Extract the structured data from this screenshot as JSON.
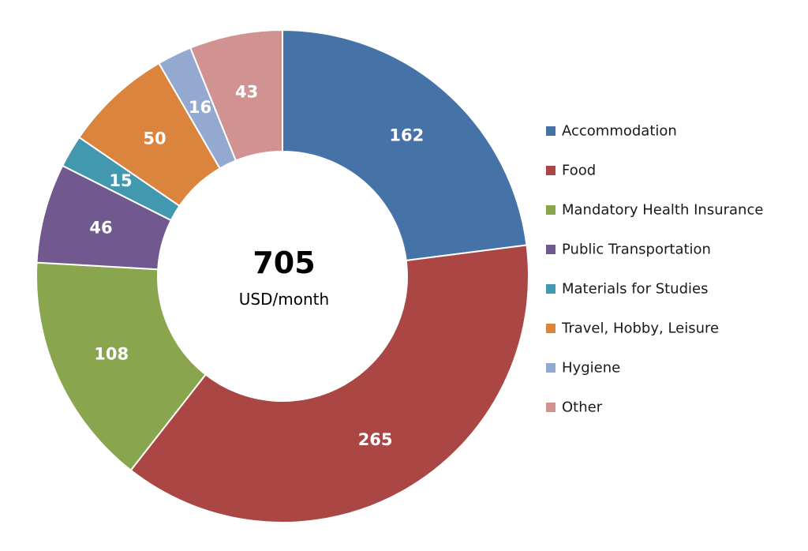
{
  "chart_data": {
    "type": "pie",
    "subtype": "donut",
    "title": "",
    "center_total": "705",
    "center_unit": "USD/month",
    "legend_position": "right",
    "categories": [
      "Accommodation",
      "Food",
      "Mandatory Health Insurance",
      "Public Transportation",
      "Materials for Studies",
      "Travel, Hobby, Leisure",
      "Hygiene",
      "Other"
    ],
    "values": [
      162,
      265,
      108,
      46,
      15,
      50,
      16,
      43
    ],
    "colors": [
      "#4572a7",
      "#aa4643",
      "#89a54e",
      "#71588f",
      "#4198af",
      "#db843d",
      "#93a9cf",
      "#d19392"
    ]
  }
}
